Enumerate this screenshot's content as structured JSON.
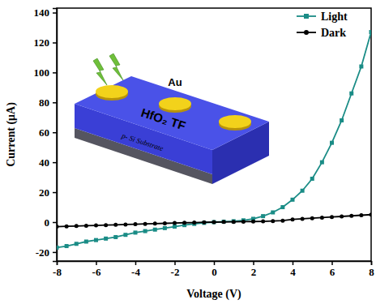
{
  "chart_data": {
    "type": "line",
    "x_label": "Voltage (V)",
    "y_label": "Current (μA)",
    "x": [
      -8,
      -7.5,
      -7,
      -6.5,
      -6,
      -5.5,
      -5,
      -4.5,
      -4,
      -3.5,
      -3,
      -2.5,
      -2,
      -1.5,
      -1,
      -0.5,
      0,
      0.5,
      1,
      1.5,
      2,
      2.5,
      3,
      3.5,
      4,
      4.5,
      5,
      5.5,
      6,
      6.5,
      7,
      7.5,
      8
    ],
    "series": [
      {
        "name": "Light",
        "color": "#1a8c86",
        "marker": "square",
        "values": [
          -17,
          -16,
          -14.5,
          -13,
          -12,
          -11,
          -10,
          -8.5,
          -7,
          -6,
          -5,
          -4,
          -3,
          -2,
          -1.2,
          -0.5,
          0,
          0.3,
          0.6,
          1.2,
          2.2,
          4,
          6.5,
          10,
          15,
          21,
          29,
          40,
          53,
          68,
          86,
          104,
          127
        ]
      },
      {
        "name": "Dark",
        "color": "#000000",
        "marker": "circle",
        "values": [
          -3,
          -2.8,
          -2.6,
          -2.4,
          -2.2,
          -2,
          -1.8,
          -1.6,
          -1.4,
          -1.2,
          -1,
          -0.8,
          -0.6,
          -0.4,
          -0.3,
          -0.1,
          0,
          0.1,
          0.2,
          0.3,
          0.4,
          0.5,
          0.7,
          1,
          1.8,
          2.2,
          2.6,
          3,
          3.4,
          3.8,
          4.2,
          4.6,
          5
        ]
      }
    ],
    "xlim": [
      -8,
      8
    ],
    "xticks": [
      -8,
      -6,
      -4,
      -2,
      0,
      2,
      4,
      6,
      8
    ],
    "ylim": [
      -26,
      143
    ],
    "yticks": [
      -20,
      0,
      20,
      40,
      60,
      80,
      100,
      120,
      140
    ],
    "legend": "upper right",
    "annotations": [
      "Au",
      "HfO₂ TF",
      "p- Si Substrate"
    ]
  }
}
